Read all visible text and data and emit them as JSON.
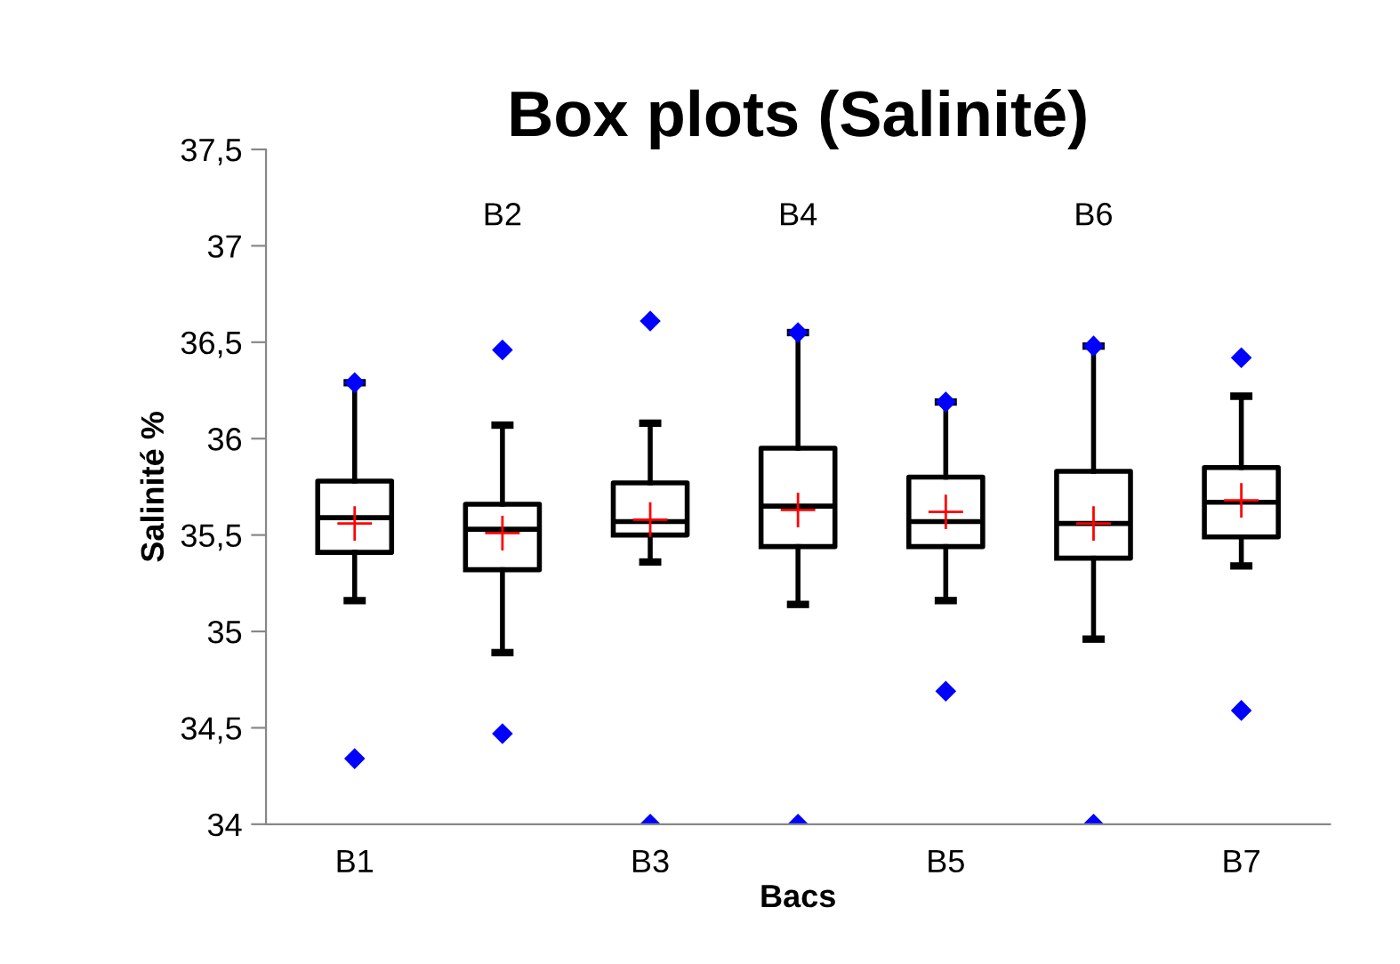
{
  "chart_data": {
    "type": "box",
    "title": "Box plots (Salinité)",
    "xlabel": "Bacs",
    "ylabel": "Salinité %",
    "categories": [
      "B1",
      "B2",
      "B3",
      "B4",
      "B5",
      "B6",
      "B7"
    ],
    "boxes": [
      {
        "low": 35.16,
        "q1": 35.41,
        "median": 35.59,
        "q3": 35.78,
        "high": 36.29,
        "mean": 35.56,
        "outliers": [
          34.34,
          36.29
        ]
      },
      {
        "low": 34.89,
        "q1": 35.32,
        "median": 35.53,
        "q3": 35.66,
        "high": 36.07,
        "mean": 35.51,
        "outliers": [
          34.47,
          36.46
        ]
      },
      {
        "low": 35.36,
        "q1": 35.5,
        "median": 35.57,
        "q3": 35.77,
        "high": 36.08,
        "mean": 35.58,
        "outliers": [
          34.0,
          36.61
        ]
      },
      {
        "low": 35.14,
        "q1": 35.44,
        "median": 35.65,
        "q3": 35.95,
        "high": 36.55,
        "mean": 35.63,
        "outliers": [
          34.0,
          36.55
        ]
      },
      {
        "low": 35.16,
        "q1": 35.44,
        "median": 35.57,
        "q3": 35.8,
        "high": 36.19,
        "mean": 35.62,
        "outliers": [
          34.69,
          36.19
        ]
      },
      {
        "low": 34.96,
        "q1": 35.38,
        "median": 35.56,
        "q3": 35.83,
        "high": 36.48,
        "mean": 35.56,
        "outliers": [
          34.0,
          36.48
        ]
      },
      {
        "low": 35.34,
        "q1": 35.49,
        "median": 35.67,
        "q3": 35.85,
        "high": 36.22,
        "mean": 35.68,
        "outliers": [
          34.59,
          36.42
        ]
      }
    ],
    "ylim": [
      34,
      37.5
    ],
    "yticks": [
      34,
      {
        "value": 34.5,
        "label": "34,5"
      },
      35,
      {
        "value": 35.5,
        "label": "35,5"
      },
      36,
      {
        "value": 36.5,
        "label": "36,5"
      },
      37,
      {
        "value": 37.5,
        "label": "37,5"
      }
    ],
    "grid": false,
    "legend": false
  }
}
